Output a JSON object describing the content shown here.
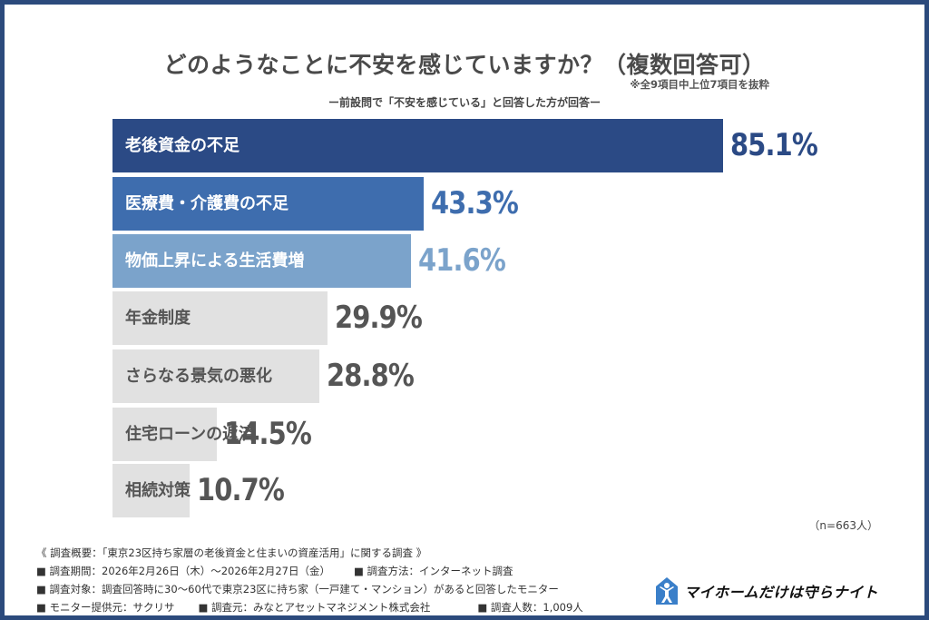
{
  "chart_data": {
    "type": "bar",
    "orientation": "horizontal",
    "title": "どのようなことに不安を感じていますか？（複数回答可）",
    "note": "※全9項目中上位7項目を抜粋",
    "subtitle": "ー前設問で「不安を感じている」と回答した方が回答ー",
    "categories": [
      "老後資金の不足",
      "医療費・介護費の不足",
      "物価上昇による生活費増",
      "年金制度",
      "さらなる景気の悪化",
      "住宅ローンの返済",
      "相続対策"
    ],
    "values": [
      85.1,
      43.3,
      41.6,
      29.9,
      28.8,
      14.5,
      10.7
    ],
    "value_labels": [
      "85.1%",
      "43.3%",
      "41.6%",
      "29.9%",
      "28.8%",
      "14.5%",
      "10.7%"
    ],
    "unit": "%",
    "bar_colors": [
      "#2b4a85",
      "#3e6dae",
      "#7ba3cb",
      "#e1e1e1",
      "#e1e1e1",
      "#e1e1e1",
      "#e1e1e1"
    ],
    "label_colors": [
      "#ffffff",
      "#ffffff",
      "#ffffff",
      "#555555",
      "#555555",
      "#555555",
      "#555555"
    ],
    "value_colors": [
      "#2b4a85",
      "#3e6dae",
      "#7ba3cb",
      "#555555",
      "#555555",
      "#555555",
      "#555555"
    ],
    "sample": "（n=663人）"
  },
  "footer": {
    "line1": "《 調査概要：「東京23区持ち家層の老後資金と住まいの資産活用」に関する調査 》",
    "period": "■ 調査期間：2026年2月26日（木）～2026年2月27日（金）",
    "method": "■ 調査方法：インターネット調査",
    "target": "■ 調査対象：調査回答時に30～60代で東京23区に持ち家（一戸建て・マンション）があると回答したモニター",
    "provider": "■ モニター提供元：サクリサ",
    "organizer": "■ 調査元：みなとアセットマネジメント株式会社",
    "count": "■ 調査人数：1,009人"
  },
  "logo": {
    "text": "マイホームだけは守らナイト",
    "icon": "house-person-icon"
  }
}
